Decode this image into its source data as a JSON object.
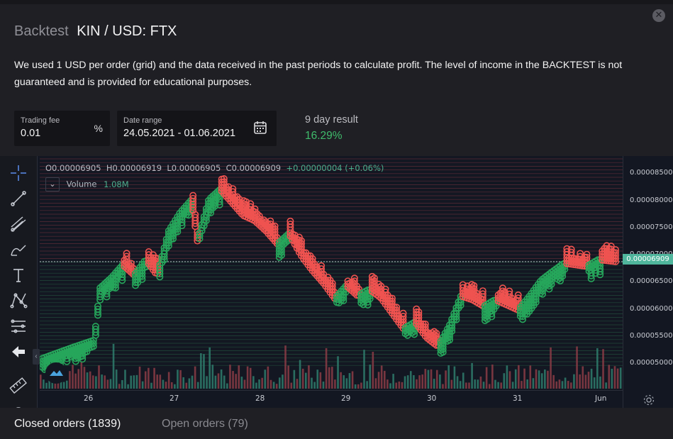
{
  "header": {
    "title_prefix": "Backtest",
    "title": "KIN / USD: FTX",
    "close_icon": "close-icon"
  },
  "description": "We used 1 USD per order (grid) and the data received in the past periods to calculate profit. The level of income in the BACKTEST is not guaranteed and is provided for educational purposes.",
  "fields": {
    "fee_label": "Trading fee",
    "fee_value": "0.01",
    "fee_unit": "%",
    "range_label": "Date range",
    "range_value": "24.05.2021 - 01.06.2021",
    "calendar_icon": "calendar-icon"
  },
  "result": {
    "label": "9 day result",
    "value": "16.29%",
    "color": "#3fbb6b"
  },
  "chart": {
    "ohlc": {
      "o": "O0.00006905",
      "h": "H0.00006919",
      "l": "L0.00006905",
      "c": "C0.00006909",
      "change": "+0.00000004 (+0.06%)"
    },
    "volume_label": "Volume",
    "volume_value": "1.08M",
    "current_price": "0.00006909",
    "price_ticks": [
      "0.00008500",
      "0.00008000",
      "0.00007500",
      "0.00007000",
      "0.00006500",
      "0.00006000",
      "0.00005500",
      "0.00005000"
    ],
    "time_ticks": [
      "26",
      "27",
      "28",
      "29",
      "30",
      "31",
      "Jun"
    ],
    "colors": {
      "up": "#26a65b",
      "down": "#ef5350",
      "accent": "#4fb59c",
      "bg": "#131722"
    },
    "toolbar_icons": [
      "crosshair-icon",
      "trend-line-icon",
      "pitchfork-icon",
      "brush-icon",
      "text-icon",
      "pattern-icon",
      "fib-icon",
      "back-arrow-icon",
      "ruler-icon",
      "magnet-icon"
    ]
  },
  "chart_data": {
    "type": "candlestick",
    "title": "",
    "xlabel": "",
    "ylabel": "",
    "x_ticks": [
      "26",
      "27",
      "28",
      "29",
      "30",
      "31",
      "Jun"
    ],
    "ylim": [
      4.85e-05,
      8.75e-05
    ],
    "price_trace": {
      "x": [
        0,
        0.05,
        0.09,
        0.1,
        0.12,
        0.14,
        0.16,
        0.18,
        0.2,
        0.22,
        0.24,
        0.26,
        0.27,
        0.29,
        0.31,
        0.33,
        0.35,
        0.37,
        0.39,
        0.41,
        0.43,
        0.45,
        0.47,
        0.49,
        0.51,
        0.53,
        0.55,
        0.57,
        0.59,
        0.61,
        0.63,
        0.65,
        0.67,
        0.69,
        0.71,
        0.73,
        0.75,
        0.77,
        0.79,
        0.81,
        0.83,
        0.85,
        0.87,
        0.89,
        0.91,
        0.93,
        0.95,
        0.97,
        1.0
      ],
      "y": [
        5.05e-05,
        5.25e-05,
        5.4e-05,
        6.4e-05,
        6.6e-05,
        6.85e-05,
        6.65e-05,
        6.95e-05,
        6.65e-05,
        7.5e-05,
        7.85e-05,
        8.1e-05,
        7.3e-05,
        8.1e-05,
        8.3e-05,
        8.05e-05,
        7.8e-05,
        7.7e-05,
        7.5e-05,
        7.25e-05,
        7.45e-05,
        7.05e-05,
        6.75e-05,
        6.5e-05,
        6.2e-05,
        6.45e-05,
        6.25e-05,
        6.38e-05,
        6.22e-05,
        5.92e-05,
        5.62e-05,
        5.75e-05,
        5.45e-05,
        5.28e-05,
        5.68e-05,
        6.25e-05,
        6.18e-05,
        6.05e-05,
        6.18e-05,
        6.08e-05,
        5.98e-05,
        6.25e-05,
        6.55e-05,
        6.72e-05,
        6.88e-05,
        6.85e-05,
        6.82e-05,
        6.95e-05,
        6.91e-05
      ]
    },
    "volume_max": 1.08
  }
}
